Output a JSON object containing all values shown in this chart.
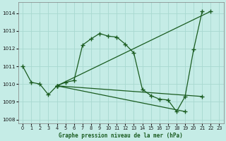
{
  "title": "Graphe pression niveau de la mer (hPa)",
  "bg_color": "#c5ece6",
  "grid_color": "#a8d8d0",
  "line_color": "#1a5c20",
  "xlim": [
    -0.5,
    23.5
  ],
  "ylim": [
    1007.8,
    1014.6
  ],
  "yticks": [
    1008,
    1009,
    1010,
    1011,
    1012,
    1013,
    1014
  ],
  "xticks": [
    0,
    1,
    2,
    3,
    4,
    5,
    6,
    7,
    8,
    9,
    10,
    11,
    12,
    13,
    14,
    15,
    16,
    17,
    18,
    19,
    20,
    21,
    22,
    23
  ],
  "series0_x": [
    0,
    1,
    2,
    3,
    4,
    5,
    6,
    7,
    8,
    9,
    10,
    11,
    12,
    13,
    14,
    15,
    16,
    17,
    18,
    19,
    20,
    21
  ],
  "series0_y": [
    1011.0,
    1010.1,
    1010.0,
    1009.4,
    1009.9,
    1010.1,
    1010.2,
    1012.2,
    1012.55,
    1012.85,
    1012.7,
    1012.65,
    1012.25,
    1011.75,
    1009.7,
    1009.35,
    1009.15,
    1009.1,
    1008.45,
    1009.3,
    1011.95,
    1014.1
  ],
  "line1_x": [
    4,
    22
  ],
  "line1_y": [
    1009.9,
    1014.1
  ],
  "line2_x": [
    4,
    21
  ],
  "line2_y": [
    1009.9,
    1009.3
  ],
  "line3_x": [
    4,
    19
  ],
  "line3_y": [
    1009.9,
    1008.45
  ],
  "figsize": [
    3.2,
    2.0
  ],
  "dpi": 100
}
